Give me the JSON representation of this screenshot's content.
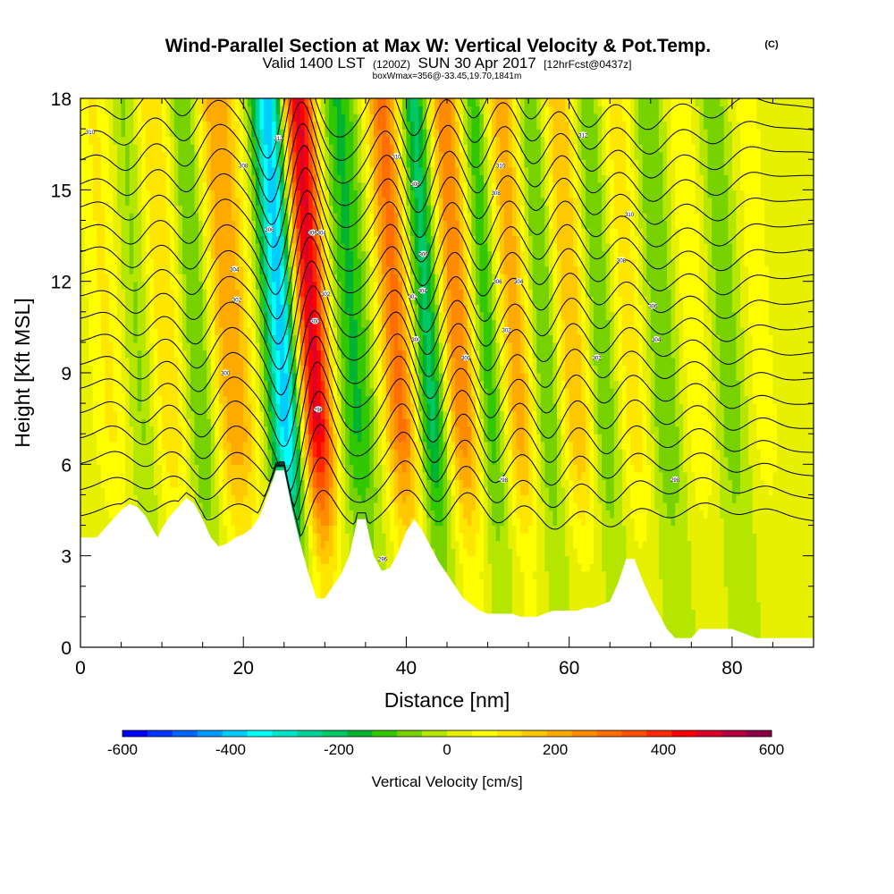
{
  "chart_data": {
    "type": "heatmap",
    "title": "Wind-Parallel Section at Max W: Vertical Velocity & Pot.Temp.",
    "title_mark": "(C)",
    "subtitle_main": "Valid 1400 LST",
    "subtitle_zulu": "(1200Z)",
    "subtitle_date": "SUN 30 Apr 2017",
    "subtitle_fcst": "[12hrFcst@0437z]",
    "box_info": "boxWmax=356@-33.45,19.70,1841m",
    "xlabel": "Distance [nm]",
    "ylabel": "Height [Kft MSL]",
    "xlim": [
      0,
      90
    ],
    "ylim": [
      0,
      18
    ],
    "x_ticks": [
      0,
      20,
      40,
      60,
      80
    ],
    "y_ticks": [
      0,
      3,
      6,
      9,
      12,
      15,
      18
    ],
    "colorbar": {
      "label": "Vertical Velocity [cm/s]",
      "range": [
        -600,
        600
      ],
      "ticks": [
        -600,
        -400,
        -200,
        0,
        200,
        400,
        600
      ],
      "colors": [
        "#0000ff",
        "#0033ff",
        "#0066ff",
        "#0099ff",
        "#00ccff",
        "#00ffff",
        "#00e6c8",
        "#00d296",
        "#00c864",
        "#00b432",
        "#32c800",
        "#78d200",
        "#b4e600",
        "#e6f000",
        "#ffff00",
        "#ffe600",
        "#ffc800",
        "#ffaa00",
        "#ff8c00",
        "#ff6e00",
        "#ff5000",
        "#ff2800",
        "#ff0000",
        "#dc0028",
        "#b4003c",
        "#8c0046"
      ]
    },
    "updraft_bands": [
      {
        "x": 4,
        "w": 100,
        "sigma": 1.8
      },
      {
        "x": 11,
        "w": 150,
        "sigma": 2.0
      },
      {
        "x": 19,
        "w": 230,
        "sigma": 2.0
      },
      {
        "x": 29,
        "w": 500,
        "sigma": 1.6
      },
      {
        "x": 34,
        "w": -150,
        "sigma": 1.8
      },
      {
        "x": 39.5,
        "w": 300,
        "sigma": 1.6
      },
      {
        "x": 47,
        "w": 300,
        "sigma": 1.9
      },
      {
        "x": 54,
        "w": 230,
        "sigma": 1.8
      },
      {
        "x": 61,
        "w": 200,
        "sigma": 1.7
      },
      {
        "x": 68,
        "w": 130,
        "sigma": 1.6
      },
      {
        "x": 76,
        "w": 90,
        "sigma": 1.6
      },
      {
        "x": 84,
        "w": 70,
        "sigma": 1.6
      }
    ],
    "downdraft_bands": [
      {
        "x": 8,
        "w": -100,
        "sigma": 1.5
      },
      {
        "x": 15,
        "w": -140,
        "sigma": 1.5
      },
      {
        "x": 25.5,
        "w": -430,
        "sigma": 1.5
      },
      {
        "x": 43.5,
        "w": -260,
        "sigma": 1.5
      },
      {
        "x": 50.5,
        "w": -200,
        "sigma": 1.5
      },
      {
        "x": 57.5,
        "w": -150,
        "sigma": 1.5
      },
      {
        "x": 64.5,
        "w": -120,
        "sigma": 1.5
      },
      {
        "x": 72,
        "w": -100,
        "sigma": 1.5
      },
      {
        "x": 80,
        "w": -80,
        "sigma": 1.5
      }
    ],
    "terrain": {
      "distance_nm": [
        0,
        2,
        3,
        4,
        5,
        6,
        7,
        8,
        9,
        9.5,
        10,
        11,
        12,
        13,
        14,
        15,
        16,
        17,
        18,
        19,
        20,
        21,
        22,
        23,
        24,
        25,
        26,
        27,
        28,
        29,
        30,
        31,
        32,
        33,
        34,
        35,
        36,
        37,
        38,
        39,
        40,
        41,
        42,
        43,
        44,
        45,
        46,
        47,
        48,
        49,
        50,
        52,
        53,
        54,
        55,
        56,
        57,
        58,
        59,
        60,
        61,
        62,
        63,
        64,
        65,
        66,
        67,
        68,
        69,
        70,
        71,
        72,
        73,
        74,
        75,
        76,
        77,
        78,
        79,
        80,
        81,
        82,
        83,
        84,
        85,
        86,
        87,
        88,
        89,
        90
      ],
      "height_kft": [
        3.6,
        3.6,
        3.9,
        4.2,
        4.5,
        4.7,
        4.6,
        4.3,
        3.8,
        3.6,
        3.9,
        4.3,
        4.6,
        4.9,
        4.7,
        4.2,
        3.6,
        3.3,
        3.4,
        3.6,
        3.7,
        3.9,
        4.3,
        5.0,
        5.8,
        5.8,
        4.5,
        3.4,
        2.4,
        1.6,
        1.6,
        2.0,
        2.4,
        3.0,
        4.2,
        4.2,
        3.0,
        2.5,
        2.6,
        3.1,
        3.8,
        4.2,
        3.8,
        3.3,
        2.8,
        2.4,
        2.0,
        1.6,
        1.4,
        1.2,
        1.1,
        1.1,
        1.1,
        1.0,
        1.0,
        1.0,
        1.1,
        1.2,
        1.2,
        1.2,
        1.2,
        1.3,
        1.3,
        1.4,
        1.5,
        2.1,
        2.9,
        2.9,
        2.2,
        1.6,
        1.1,
        0.6,
        0.3,
        0.3,
        0.3,
        0.6,
        0.6,
        0.6,
        0.6,
        0.6,
        0.5,
        0.4,
        0.3,
        0.3,
        0.3,
        0.3,
        0.3,
        0.3,
        0.3,
        0.3
      ]
    },
    "theta_contour_count": 18,
    "contour_labels": [
      {
        "x": 1.2,
        "y": 16.9,
        "text": "310"
      },
      {
        "x": 20.0,
        "y": 15.8,
        "text": "308"
      },
      {
        "x": 23.2,
        "y": 13.7,
        "text": "306"
      },
      {
        "x": 18.9,
        "y": 12.4,
        "text": "304"
      },
      {
        "x": 19.2,
        "y": 11.4,
        "text": "302"
      },
      {
        "x": 17.8,
        "y": 9.0,
        "text": "300"
      },
      {
        "x": 24.3,
        "y": 16.7,
        "text": "312"
      },
      {
        "x": 28.5,
        "y": 13.6,
        "text": "306"
      },
      {
        "x": 29.6,
        "y": 13.6,
        "text": "304"
      },
      {
        "x": 30.1,
        "y": 11.6,
        "text": "302"
      },
      {
        "x": 28.8,
        "y": 10.7,
        "text": "300"
      },
      {
        "x": 29.2,
        "y": 7.8,
        "text": "298"
      },
      {
        "x": 38.8,
        "y": 16.1,
        "text": "310"
      },
      {
        "x": 41.1,
        "y": 15.2,
        "text": "308"
      },
      {
        "x": 42.1,
        "y": 12.9,
        "text": "306"
      },
      {
        "x": 42.0,
        "y": 11.7,
        "text": "304"
      },
      {
        "x": 40.8,
        "y": 11.5,
        "text": "302"
      },
      {
        "x": 41.2,
        "y": 10.1,
        "text": "300"
      },
      {
        "x": 37.1,
        "y": 2.9,
        "text": "296"
      },
      {
        "x": 51.6,
        "y": 15.8,
        "text": "310"
      },
      {
        "x": 51.0,
        "y": 14.9,
        "text": "308"
      },
      {
        "x": 51.2,
        "y": 12.0,
        "text": "306"
      },
      {
        "x": 53.8,
        "y": 12.0,
        "text": "304"
      },
      {
        "x": 52.3,
        "y": 10.4,
        "text": "302"
      },
      {
        "x": 47.3,
        "y": 9.5,
        "text": "300"
      },
      {
        "x": 51.9,
        "y": 5.5,
        "text": "298"
      },
      {
        "x": 61.7,
        "y": 16.8,
        "text": "312"
      },
      {
        "x": 67.4,
        "y": 14.2,
        "text": "310"
      },
      {
        "x": 66.4,
        "y": 12.7,
        "text": "308"
      },
      {
        "x": 70.3,
        "y": 11.2,
        "text": "306"
      },
      {
        "x": 70.7,
        "y": 10.1,
        "text": "304"
      },
      {
        "x": 63.4,
        "y": 9.5,
        "text": "302"
      },
      {
        "x": 73.0,
        "y": 5.5,
        "text": "298"
      }
    ]
  }
}
